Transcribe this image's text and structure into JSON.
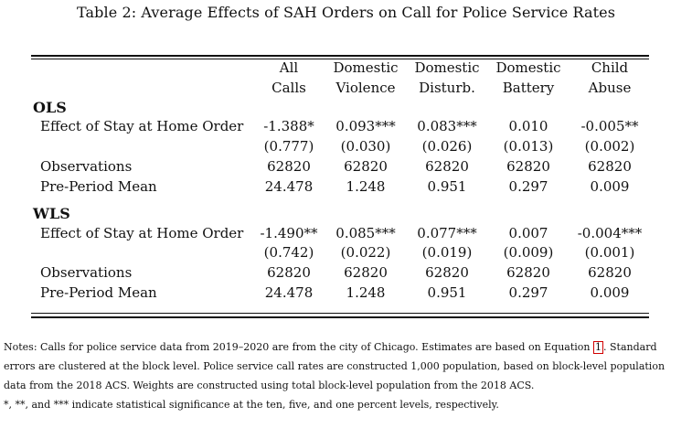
{
  "caption": "Table 2: Average Effects of SAH Orders on Call for Police Service Rates",
  "columns": [
    {
      "line1": "All",
      "line2": "Calls"
    },
    {
      "line1": "Domestic",
      "line2": "Violence"
    },
    {
      "line1": "Domestic",
      "line2": "Disturb."
    },
    {
      "line1": "Domestic",
      "line2": "Battery"
    },
    {
      "line1": "Child",
      "line2": "Abuse"
    }
  ],
  "sections": [
    {
      "title": "OLS",
      "rows": [
        {
          "label": "Effect of Stay at Home Order",
          "values": [
            "-1.388*",
            "0.093***",
            "0.083***",
            "0.010",
            "-0.005**"
          ]
        },
        {
          "label": "",
          "values": [
            "(0.777)",
            "(0.030)",
            "(0.026)",
            "(0.013)",
            "(0.002)"
          ]
        },
        {
          "label": "Observations",
          "values": [
            "62820",
            "62820",
            "62820",
            "62820",
            "62820"
          ]
        },
        {
          "label": "Pre-Period Mean",
          "values": [
            "24.478",
            "1.248",
            "0.951",
            "0.297",
            "0.009"
          ]
        }
      ]
    },
    {
      "title": "WLS",
      "rows": [
        {
          "label": "Effect of Stay at Home Order",
          "values": [
            "-1.490**",
            "0.085***",
            "0.077***",
            "0.007",
            "-0.004***"
          ]
        },
        {
          "label": "",
          "values": [
            "(0.742)",
            "(0.022)",
            "(0.019)",
            "(0.009)",
            "(0.001)"
          ]
        },
        {
          "label": "Observations",
          "values": [
            "62820",
            "62820",
            "62820",
            "62820",
            "62820"
          ]
        },
        {
          "label": "Pre-Period Mean",
          "values": [
            "24.478",
            "1.248",
            "0.951",
            "0.297",
            "0.009"
          ]
        }
      ]
    }
  ],
  "notes": {
    "line1_before_ref": "Notes: Calls for police service data from 2019–2020 are from the city of Chicago. Estimates are based on Equation ",
    "equation_ref": "1",
    "line1_after_ref": ". Standard",
    "line2": "errors are clustered at the block level. Police service call rates are constructed 1,000 population, based on block-level population",
    "line3": "data from the 2018 ACS. Weights are constructed using total block-level population from the 2018 ACS.",
    "line4": "*, **, and *** indicate statistical significance at the ten, five, and one percent levels, respectively."
  },
  "colors": {
    "text": "#111111",
    "equation_ref_border": "#d00000"
  }
}
